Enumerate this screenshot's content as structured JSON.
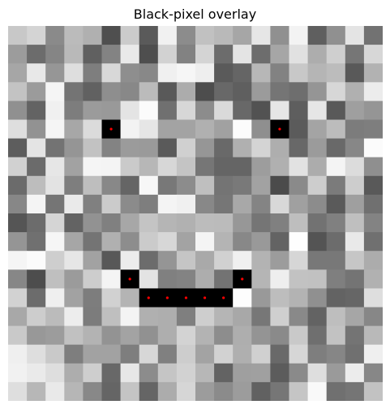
{
  "title": "Black-pixel overlay",
  "grid": {
    "rows": 20,
    "cols": 20,
    "levels": [
      "cecececececececececececececececececececec",
      "",
      "",
      ""
    ]
  },
  "pixels": [
    [
      200,
      212,
      138,
      187,
      176,
      79,
      203,
      90,
      241,
      140,
      193,
      185,
      166,
      230,
      144,
      243,
      95,
      144,
      228,
      114
    ],
    [
      156,
      108,
      133,
      185,
      96,
      131,
      233,
      78,
      210,
      130,
      212,
      108,
      228,
      109,
      166,
      225,
      173,
      207,
      118,
      215
    ],
    [
      166,
      232,
      150,
      222,
      126,
      216,
      142,
      136,
      240,
      246,
      238,
      90,
      101,
      183,
      130,
      200,
      181,
      188,
      89,
      178
    ],
    [
      195,
      155,
      245,
      116,
      97,
      142,
      136,
      187,
      89,
      172,
      77,
      104,
      95,
      155,
      117,
      110,
      149,
      215,
      176,
      236
    ],
    [
      144,
      99,
      240,
      125,
      155,
      153,
      228,
      251,
      112,
      215,
      140,
      218,
      104,
      82,
      230,
      94,
      230,
      89,
      159,
      149
    ],
    [
      222,
      146,
      245,
      167,
      219,
      0,
      243,
      230,
      163,
      163,
      176,
      161,
      252,
      143,
      0,
      91,
      164,
      188,
      124,
      126
    ],
    [
      93,
      228,
      115,
      149,
      194,
      131,
      155,
      154,
      90,
      208,
      150,
      105,
      176,
      212,
      174,
      104,
      155,
      105,
      135,
      251
    ],
    [
      209,
      107,
      230,
      162,
      245,
      244,
      202,
      183,
      215,
      196,
      118,
      101,
      101,
      157,
      176,
      226,
      172,
      244,
      220,
      143
    ],
    [
      107,
      189,
      227,
      126,
      190,
      136,
      101,
      247,
      120,
      140,
      191,
      116,
      121,
      162,
      75,
      138,
      205,
      123,
      205,
      89
    ],
    [
      135,
      244,
      117,
      234,
      128,
      203,
      139,
      126,
      244,
      240,
      136,
      118,
      168,
      132,
      216,
      160,
      140,
      90,
      159,
      112
    ],
    [
      85,
      108,
      213,
      99,
      146,
      128,
      167,
      196,
      181,
      177,
      188,
      187,
      151,
      117,
      128,
      190,
      114,
      128,
      191,
      131
    ],
    [
      149,
      112,
      246,
      166,
      116,
      176,
      141,
      203,
      215,
      163,
      244,
      180,
      136,
      153,
      99,
      254,
      84,
      108,
      233,
      112
    ],
    [
      245,
      251,
      206,
      230,
      162,
      88,
      236,
      108,
      149,
      197,
      169,
      209,
      240,
      179,
      156,
      214,
      120,
      120,
      198,
      172
    ],
    [
      135,
      77,
      191,
      155,
      205,
      244,
      0,
      227,
      128,
      131,
      173,
      115,
      0,
      181,
      238,
      194,
      193,
      127,
      116,
      177
    ],
    [
      210,
      108,
      239,
      162,
      125,
      209,
      180,
      0,
      0,
      0,
      0,
      0,
      253,
      153,
      189,
      179,
      144,
      99,
      102,
      222
    ],
    [
      168,
      205,
      187,
      237,
      124,
      191,
      244,
      176,
      174,
      127,
      206,
      181,
      168,
      119,
      207,
      137,
      99,
      190,
      166,
      135
    ],
    [
      201,
      152,
      156,
      193,
      179,
      147,
      163,
      145,
      174,
      211,
      179,
      141,
      174,
      148,
      138,
      201,
      111,
      194,
      116,
      185
    ],
    [
      239,
      222,
      201,
      126,
      162,
      162,
      126,
      215,
      128,
      205,
      163,
      210,
      175,
      208,
      105,
      214,
      126,
      134,
      112,
      239
    ],
    [
      241,
      234,
      222,
      173,
      206,
      104,
      231,
      140,
      197,
      210,
      183,
      99,
      159,
      160,
      92,
      138,
      222,
      154,
      236,
      135
    ],
    [
      222,
      183,
      233,
      182,
      136,
      101,
      196,
      101,
      172,
      214,
      156,
      139,
      156,
      97,
      118,
      197,
      249,
      112,
      117,
      194
    ]
  ],
  "black_markers": [
    {
      "row": 5,
      "col": 5
    },
    {
      "row": 5,
      "col": 14
    },
    {
      "row": 13,
      "col": 6
    },
    {
      "row": 13,
      "col": 12
    },
    {
      "row": 14,
      "col": 7
    },
    {
      "row": 14,
      "col": 8
    },
    {
      "row": 14,
      "col": 9
    },
    {
      "row": 14,
      "col": 10
    },
    {
      "row": 14,
      "col": 11
    }
  ],
  "marker_color": "#ff0000"
}
